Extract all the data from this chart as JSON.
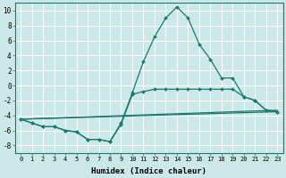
{
  "xlabel": "Humidex (Indice chaleur)",
  "background_color": "#cce8e8",
  "grid_color": "#ffffff",
  "line_color": "#1a7a6e",
  "xlim": [
    -0.5,
    23.5
  ],
  "ylim": [
    -9,
    11
  ],
  "xticks": [
    0,
    1,
    2,
    3,
    4,
    5,
    6,
    7,
    8,
    9,
    10,
    11,
    12,
    13,
    14,
    15,
    16,
    17,
    18,
    19,
    20,
    21,
    22,
    23
  ],
  "yticks": [
    -8,
    -6,
    -4,
    -2,
    0,
    2,
    4,
    6,
    8,
    10
  ],
  "line1_x": [
    0,
    1,
    2,
    3,
    4,
    5,
    6,
    7,
    8,
    9,
    10,
    11,
    12,
    13,
    14,
    15,
    16,
    17,
    18,
    19,
    20,
    21,
    22,
    23
  ],
  "line1_y": [
    -4.5,
    -5.0,
    -5.5,
    -5.5,
    -6.0,
    -6.2,
    -7.2,
    -7.2,
    -7.5,
    -5.0,
    -1.0,
    3.2,
    6.5,
    9.0,
    10.5,
    9.0,
    5.5,
    3.5,
    1.0,
    1.0,
    -1.5,
    -2.0,
    -3.3,
    -3.5
  ],
  "line2_x": [
    0,
    1,
    2,
    3,
    4,
    5,
    6,
    7,
    8,
    9,
    10,
    11,
    12,
    13,
    14,
    15,
    16,
    17,
    18,
    19,
    20,
    21,
    22,
    23
  ],
  "line2_y": [
    -4.5,
    -5.0,
    -5.5,
    -5.5,
    -6.0,
    -6.2,
    -7.2,
    -7.2,
    -7.5,
    -5.2,
    -1.2,
    -0.8,
    -0.5,
    -0.5,
    -0.5,
    -0.5,
    -0.5,
    -0.5,
    -0.5,
    -0.5,
    -1.5,
    -2.0,
    -3.3,
    -3.5
  ],
  "line3_x": [
    0,
    23
  ],
  "line3_y": [
    -4.5,
    -3.3
  ],
  "line4_x": [
    0,
    23
  ],
  "line4_y": [
    -4.5,
    -3.5
  ]
}
